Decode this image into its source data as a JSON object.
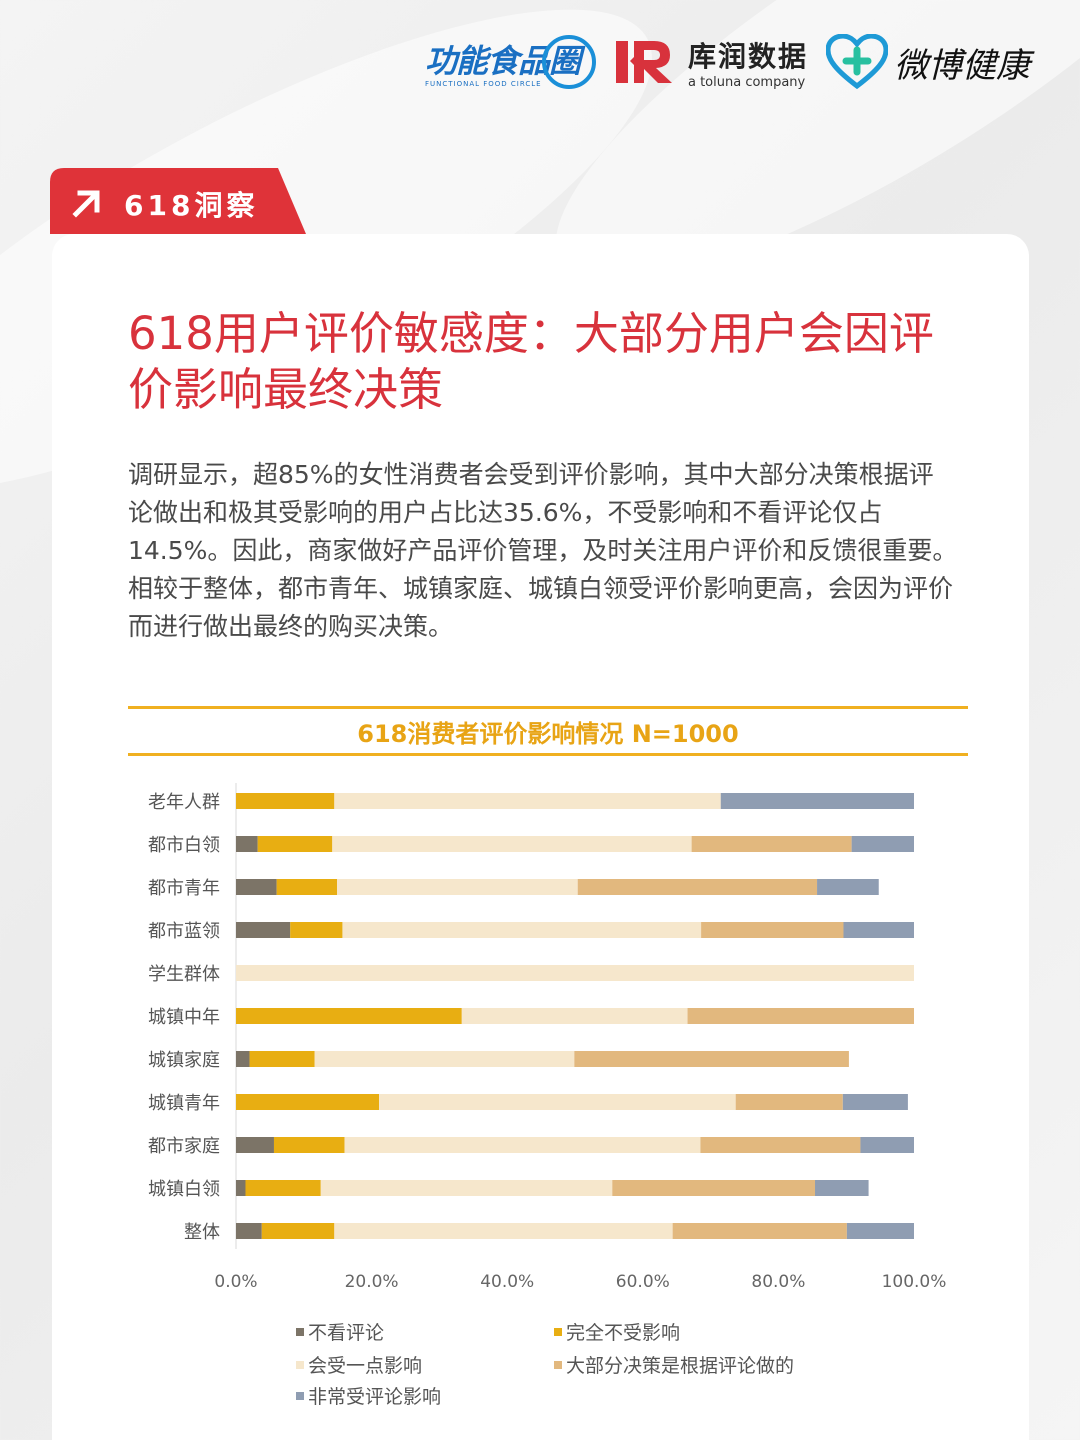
{
  "header": {
    "logo_ffc": "功能食品圈",
    "logo_ffc_sub": "FUNCTIONAL FOOD CIRCLE",
    "logo_kr": "库润数据",
    "logo_kr_sub": "a toluna company",
    "logo_wb": "微博健康"
  },
  "tab": {
    "label": "618洞察"
  },
  "article": {
    "title": "618用户评价敏感度：大部分用户会因评价影响最终决策",
    "description": "调研显示，超85%的女性消费者会受到评价影响，其中大部分决策根据评论做出和极其受影响的用户占比达35.6%，不受影响和不看评论仅占14.5%。因此，商家做好产品评价管理，及时关注用户评价和反馈很重要。相较于整体，都市青年、城镇家庭、城镇白领受评价影响更高，会因为评价而进行做出最终的购买决策。"
  },
  "colors": {
    "series": [
      "#7c7467",
      "#e8ae12",
      "#f6e7cc",
      "#e2b87e",
      "#8f9db2"
    ],
    "title_red": "#d8323c",
    "accent": "#f0b020"
  },
  "chart_data": {
    "type": "bar",
    "orientation": "horizontal",
    "stacked": true,
    "title": "618消费者评价影响情况 N=1000",
    "categories": [
      "老年人群",
      "都市白领",
      "都市青年",
      "都市蓝领",
      "学生群体",
      "城镇中年",
      "城镇家庭",
      "城镇青年",
      "都市家庭",
      "城镇白领",
      "整体"
    ],
    "xlim": [
      0,
      100
    ],
    "xticks": [
      "0.0%",
      "20.0%",
      "40.0%",
      "60.0%",
      "80.0%",
      "100.0%"
    ],
    "series": [
      {
        "name": "不看评论",
        "values": [
          0,
          3.2,
          6.0,
          8.0,
          0,
          0,
          2.0,
          0,
          5.6,
          1.4,
          3.8
        ]
      },
      {
        "name": "完全不受影响",
        "values": [
          14.5,
          11.0,
          8.9,
          7.7,
          0,
          33.3,
          9.6,
          21.1,
          10.4,
          11.1,
          10.7
        ]
      },
      {
        "name": "会受一点影响",
        "values": [
          57.0,
          53.0,
          35.5,
          52.9,
          100,
          33.3,
          38.3,
          52.6,
          52.5,
          43.0,
          49.9
        ]
      },
      {
        "name": "大部分决策是根据评论做的",
        "values": [
          0,
          23.6,
          35.3,
          21.0,
          0,
          33.4,
          40.5,
          15.8,
          23.6,
          29.9,
          25.7
        ]
      },
      {
        "name": "非常受评论影响",
        "values": [
          28.5,
          9.2,
          9.1,
          10.4,
          0,
          0,
          0,
          9.6,
          7.9,
          7.9,
          9.9
        ]
      }
    ],
    "legend_position": "bottom",
    "grid": false
  }
}
